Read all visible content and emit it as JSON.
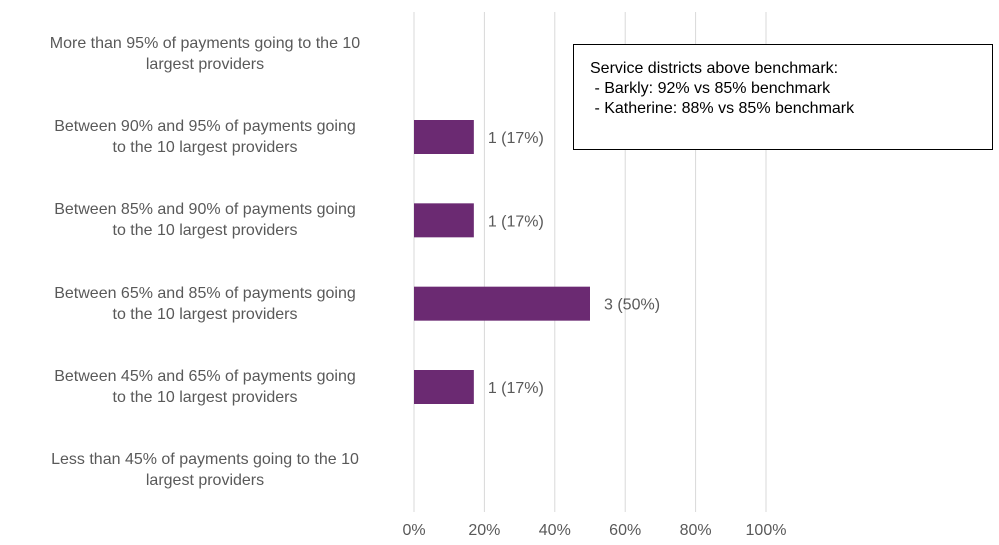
{
  "chart_data": {
    "type": "bar",
    "orientation": "horizontal",
    "categories": [
      "More than 95% of payments going to the 10 largest providers",
      "Between 90% and 95% of payments going to the 10 largest providers",
      "Between 85% and 90% of payments going to the 10 largest providers",
      "Between 65% and 85% of payments going to the 10 largest providers",
      "Between 45% and 65% of payments going to the 10 largest providers",
      "Less than 45% of payments going to the 10 largest providers"
    ],
    "category_lines": [
      [
        "More than 95% of payments going to the 10",
        "largest providers"
      ],
      [
        "Between 90% and 95% of payments going",
        "to the 10 largest providers"
      ],
      [
        "Between 85% and 90% of payments going",
        "to the 10 largest providers"
      ],
      [
        "Between 65% and 85% of payments going",
        "to the 10 largest providers"
      ],
      [
        "Between 45% and 65% of payments going",
        "to the 10 largest providers"
      ],
      [
        "Less than 45% of payments going to the 10",
        "largest providers"
      ]
    ],
    "values": [
      0,
      17,
      17,
      50,
      17,
      0
    ],
    "data_labels": [
      "",
      "1 (17%)",
      "1 (17%)",
      "3 (50%)",
      "1 (17%)",
      ""
    ],
    "xlim": [
      0,
      100
    ],
    "x_ticks": [
      0,
      20,
      40,
      60,
      80,
      100
    ],
    "x_tick_labels": [
      "0%",
      "20%",
      "40%",
      "60%",
      "80%",
      "100%"
    ],
    "grid": "vertical",
    "bar_color": "#6B2A72",
    "gridline_color": "#D9D9D9",
    "label_color": "#595959",
    "annotation": {
      "lines": [
        "Service districts above benchmark:",
        " - Barkly: 92% vs 85% benchmark",
        " - Katherine: 88% vs 85% benchmark"
      ]
    }
  }
}
